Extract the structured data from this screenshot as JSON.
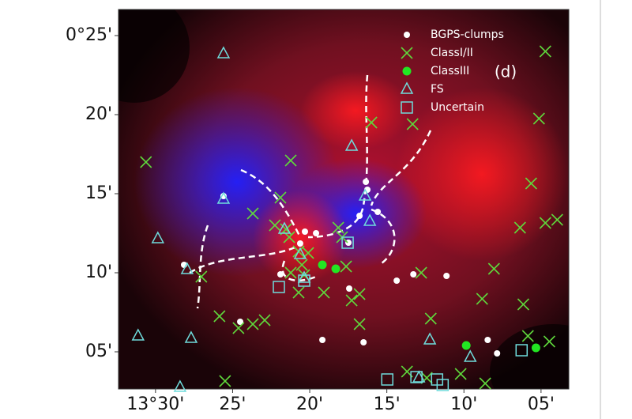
{
  "chart_data": {
    "type": "scatter",
    "annotation": "(d)",
    "xlim": [
      32.4,
      3.2
    ],
    "ylim": [
      2.65,
      26.65
    ],
    "xticks": [
      {
        "value": 30,
        "label": "13°30'"
      },
      {
        "value": 25,
        "label": "25'"
      },
      {
        "value": 20,
        "label": "20'"
      },
      {
        "value": 15,
        "label": "15'"
      },
      {
        "value": 10,
        "label": "10'"
      },
      {
        "value": 5,
        "label": "05'"
      }
    ],
    "yticks": [
      {
        "value": 25,
        "label": "0°25'"
      },
      {
        "value": 20,
        "label": "20'"
      },
      {
        "value": 15,
        "label": "15'"
      },
      {
        "value": 10,
        "label": "10'"
      },
      {
        "value": 5,
        "label": "05'"
      }
    ],
    "legend": "upper right",
    "series": [
      {
        "name": "BGPS-clumps",
        "marker": "o",
        "color": "#ffffff",
        "x": [
          25.59,
          28.15,
          24.51,
          21.9,
          20.62,
          20.31,
          19.59,
          19.18,
          17.49,
          17.44,
          16.77,
          16.36,
          16.26,
          15.59,
          16.51,
          14.36,
          13.28,
          11.13,
          8.46,
          7.85
        ],
        "values": [
          14.85,
          10.5,
          6.9,
          9.9,
          11.85,
          12.6,
          12.5,
          5.75,
          11.9,
          9.0,
          13.6,
          15.75,
          15.25,
          13.85,
          5.6,
          9.5,
          9.9,
          9.8,
          5.75,
          4.9
        ]
      },
      {
        "name": "ClassI/II",
        "marker": "x",
        "color": "#5fd83c",
        "x": [
          30.62,
          21.23,
          21.9,
          23.69,
          22.26,
          21.54,
          21.33,
          20.72,
          20.1,
          20.51,
          21.23,
          20.36,
          20.72,
          19.08,
          17.64,
          18.15,
          17.9,
          17.28,
          16.77,
          16.77,
          16.0,
          13.33,
          12.15,
          12.77,
          13.69,
          12.41,
          10.21,
          8.82,
          8.05,
          8.62,
          6.36,
          6.15,
          5.64,
          4.72,
          3.95,
          5.13,
          4.72,
          4.46,
          5.85,
          25.85,
          24.62,
          23.69,
          22.92,
          27.03,
          25.49
        ],
        "values": [
          17.0,
          17.1,
          14.75,
          13.75,
          13.0,
          12.75,
          12.25,
          11.35,
          11.25,
          10.5,
          10.0,
          9.85,
          8.75,
          8.75,
          10.4,
          12.85,
          12.25,
          8.25,
          8.65,
          6.75,
          19.5,
          19.4,
          7.1,
          10.0,
          3.75,
          3.35,
          3.6,
          8.35,
          10.25,
          3.0,
          12.85,
          8.0,
          15.65,
          13.15,
          13.35,
          19.75,
          24.0,
          5.65,
          6.0,
          7.25,
          6.5,
          6.75,
          7.0,
          9.75,
          3.15
        ]
      },
      {
        "name": "ClassIII",
        "marker": "o",
        "color": "#22e622",
        "x": [
          19.18,
          18.31,
          9.85,
          5.33
        ],
        "values": [
          10.5,
          10.25,
          5.4,
          5.25
        ]
      },
      {
        "name": "FS",
        "marker": "^",
        "color": "#6fdcdc",
        "x": [
          25.59,
          29.85,
          31.13,
          27.69,
          25.59,
          27.95,
          28.41,
          21.64,
          20.62,
          20.36,
          17.28,
          16.41,
          16.1,
          12.21,
          9.59,
          12.92
        ],
        "values": [
          23.85,
          12.15,
          6.0,
          5.85,
          14.65,
          10.2,
          2.75,
          12.75,
          11.15,
          9.65,
          18.0,
          14.85,
          13.25,
          5.75,
          4.65,
          3.35
        ]
      },
      {
        "name": "Uncertain",
        "marker": "s",
        "color": "#6fdcdc",
        "x": [
          22.0,
          20.36,
          17.54,
          14.97,
          13.08,
          11.74,
          11.38,
          6.26
        ],
        "values": [
          9.1,
          9.5,
          11.9,
          3.25,
          3.4,
          3.25,
          2.9,
          5.1
        ]
      }
    ]
  }
}
